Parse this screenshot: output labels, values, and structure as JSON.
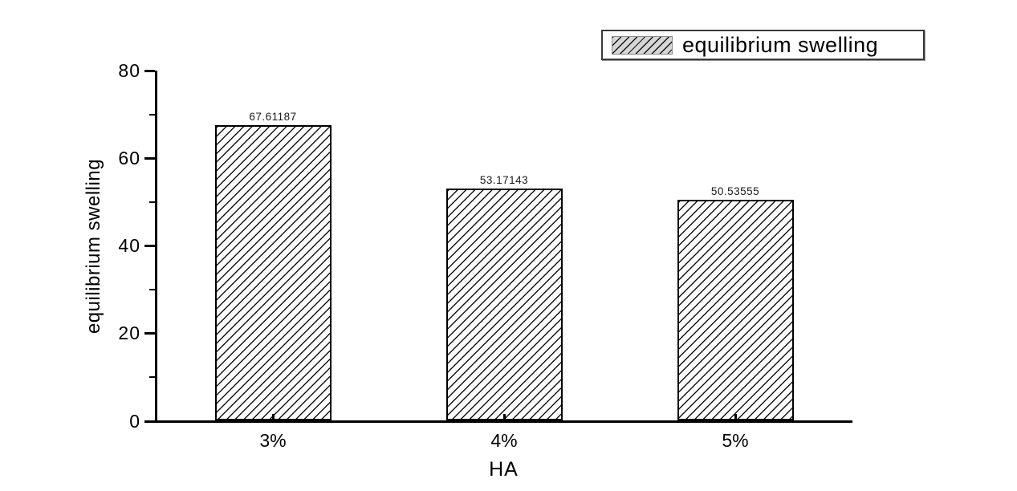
{
  "chart_data": {
    "type": "bar",
    "title": "",
    "categories": [
      "3%",
      "4%",
      "5%"
    ],
    "values": [
      67.61187,
      53.17143,
      50.53555
    ],
    "value_labels": [
      "67.61187",
      "53.17143",
      "50.53555"
    ],
    "xlabel": "HA",
    "ylabel": "equilibrium swelling",
    "ylim": [
      0,
      80
    ],
    "y_major_ticks": [
      0,
      20,
      40,
      60,
      80
    ],
    "y_minor_ticks": [
      10,
      30,
      50,
      70
    ],
    "grid": false,
    "legend": {
      "label": "equilibrium swelling",
      "position": "top-right",
      "swatch": "diagonal-hatch"
    },
    "bar_style": {
      "fill": "#ffffff",
      "hatch": "forward-diagonal",
      "line_color": "#000000"
    },
    "background_color": "#ffffff"
  }
}
